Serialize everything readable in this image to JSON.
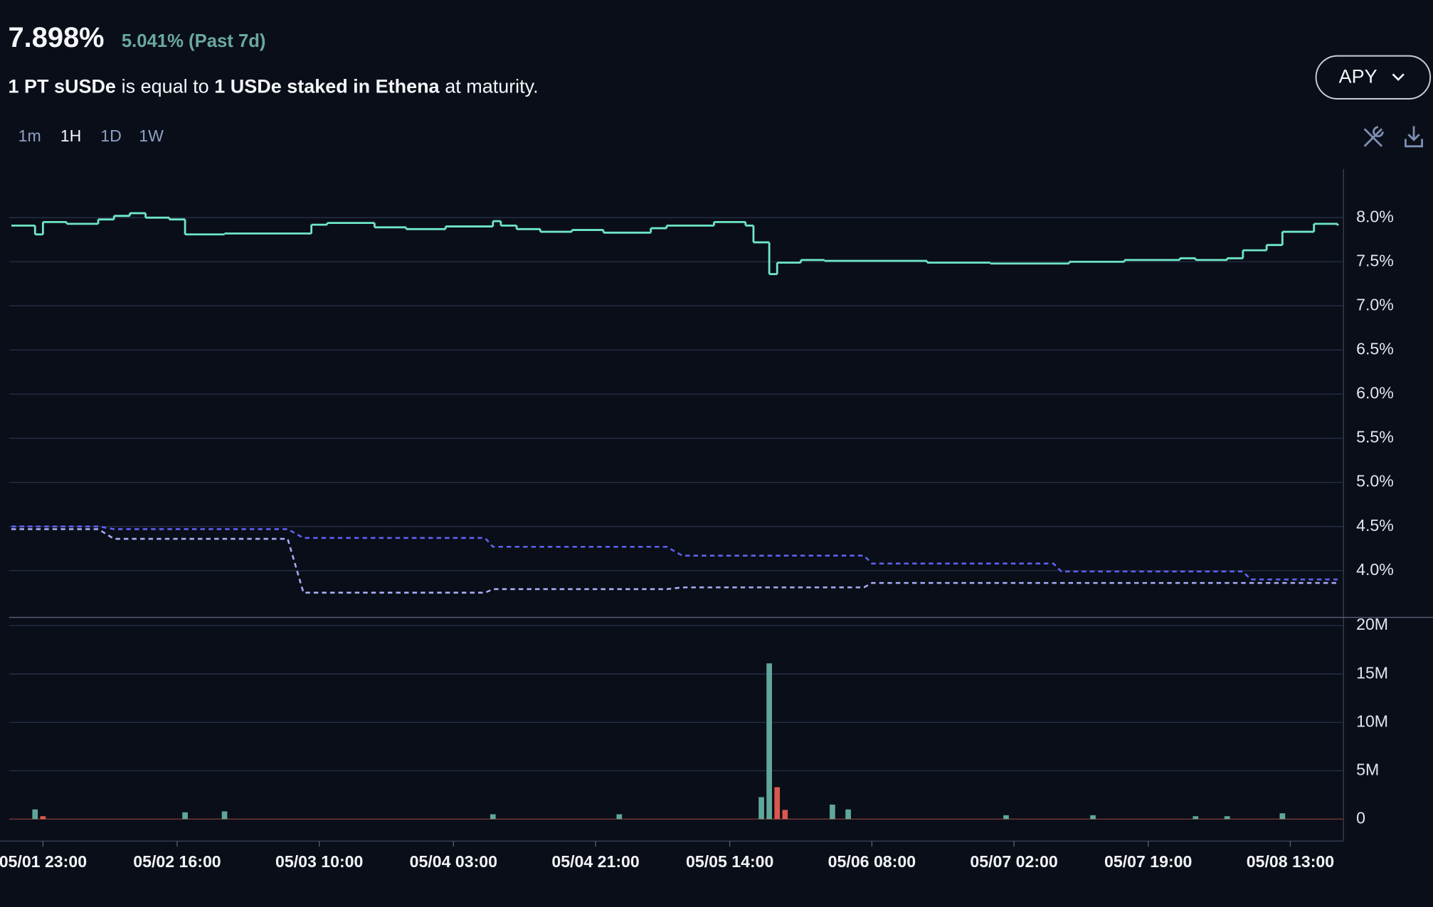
{
  "header": {
    "rate": "7.898%",
    "change": "5.041% (Past 7d)",
    "description": [
      "1 PT sUSDe",
      "is equal to",
      "1 USDe staked in Ethena",
      "at maturity."
    ]
  },
  "controls": {
    "timeframes": [
      "1m",
      "1H",
      "1D",
      "1W"
    ],
    "metric_button": "APY"
  },
  "chart_data": [
    {
      "type": "line",
      "xlim": [
        "05/01 18:43",
        "05/08 19:30"
      ],
      "ylim": [
        3.47,
        8.55
      ],
      "yticks": [
        {
          "value": 4,
          "label": "4.0%"
        },
        {
          "value": 4.5,
          "label": "4.5%"
        },
        {
          "value": 5,
          "label": "5.0%"
        },
        {
          "value": 5.5,
          "label": "5.5%"
        },
        {
          "value": 6,
          "label": "6.0%"
        },
        {
          "value": 6.5,
          "label": "6.5%"
        },
        {
          "value": 7,
          "label": "7.0%"
        },
        {
          "value": 7.5,
          "label": "7.5%"
        },
        {
          "value": 8,
          "label": "8.0%"
        }
      ],
      "grid": true,
      "series": [
        {
          "color": "#6ee7c6",
          "style": "step",
          "x": [
            "05/01 19:00",
            "05/01 22:00",
            "05/01 23:00",
            "05/02 02:00",
            "05/02 06:00",
            "05/02 08:00",
            "05/02 10:00",
            "05/02 12:00",
            "05/02 15:00",
            "05/02 17:00",
            "05/02 22:00",
            "05/03 09:00",
            "05/03 11:00",
            "05/03 17:00",
            "05/03 21:00",
            "05/04 02:00",
            "05/04 08:00",
            "05/04 09:00",
            "05/04 11:00",
            "05/04 14:00",
            "05/04 18:00",
            "05/04 22:00",
            "05/05 04:00",
            "05/05 06:00",
            "05/05 12:00",
            "05/05 16:00",
            "05/05 17:00",
            "05/05 19:00",
            "05/05 20:00",
            "05/05 23:00",
            "05/06 02:00",
            "05/06 15:00",
            "05/06 23:00",
            "05/07 09:00",
            "05/07 16:00",
            "05/07 23:00",
            "05/08 01:00",
            "05/08 05:00",
            "05/08 07:00",
            "05/08 10:00",
            "05/08 12:00",
            "05/08 16:00",
            "05/08 19:00"
          ],
          "values": [
            7.91,
            7.81,
            7.95,
            7.93,
            7.98,
            8.02,
            8.05,
            8.0,
            7.98,
            7.81,
            7.82,
            7.92,
            7.94,
            7.89,
            7.87,
            7.9,
            7.96,
            7.91,
            7.87,
            7.84,
            7.86,
            7.83,
            7.88,
            7.91,
            7.95,
            7.91,
            7.72,
            7.36,
            7.49,
            7.52,
            7.51,
            7.49,
            7.48,
            7.5,
            7.52,
            7.54,
            7.52,
            7.54,
            7.63,
            7.69,
            7.84,
            7.93,
            7.91
          ]
        },
        {
          "color": "#5d62f2",
          "style": "dashed",
          "x": [
            "05/01 19:00",
            "05/02 06:00",
            "05/02 08:00",
            "05/03 06:00",
            "05/03 08:00",
            "05/04 07:00",
            "05/04 08:00",
            "05/05 06:00",
            "05/05 08:00",
            "05/06 07:00",
            "05/06 08:00",
            "05/07 07:00",
            "05/07 08:00",
            "05/08 07:00",
            "05/08 08:00",
            "05/08 19:00"
          ],
          "values": [
            4.5,
            4.5,
            4.47,
            4.47,
            4.37,
            4.37,
            4.27,
            4.27,
            4.17,
            4.17,
            4.08,
            4.08,
            3.99,
            3.99,
            3.9,
            3.9
          ]
        },
        {
          "color": "#a9adf7",
          "style": "dashed",
          "x": [
            "05/01 19:00",
            "05/02 06:00",
            "05/02 08:00",
            "05/03 06:00",
            "05/03 08:00",
            "05/04 07:00",
            "05/04 08:00",
            "05/05 06:00",
            "05/05 08:00",
            "05/06 07:00",
            "05/06 08:00",
            "05/08 19:00"
          ],
          "values": [
            4.47,
            4.47,
            4.36,
            4.36,
            3.75,
            3.75,
            3.79,
            3.79,
            3.81,
            3.81,
            3.86,
            3.86
          ]
        }
      ]
    },
    {
      "type": "bar",
      "xlim": [
        "05/01 18:43",
        "05/08 19:30"
      ],
      "xticks": [
        "05/01 23:00",
        "05/02 16:00",
        "05/03 10:00",
        "05/04 03:00",
        "05/04 21:00",
        "05/05 14:00",
        "05/06 08:00",
        "05/07 02:00",
        "05/07 19:00",
        "05/08 13:00"
      ],
      "ylim": [
        -2270000,
        20850000
      ],
      "yticks": [
        0,
        {
          "value": 5000000,
          "label": "5M"
        },
        {
          "value": 10000000,
          "label": "10M"
        },
        {
          "value": 15000000,
          "label": "15M"
        },
        {
          "value": 20000000,
          "label": "20M"
        }
      ],
      "grid": true,
      "series": [
        {
          "color": "#5fa79a",
          "x": [
            "05/01 22:00",
            "05/02 17:00",
            "05/02 22:00",
            "05/04 08:00",
            "05/05 00:00",
            "05/05 18:00",
            "05/05 19:00",
            "05/06 03:00",
            "05/06 05:00",
            "05/07 01:00",
            "05/07 12:00",
            "05/08 01:00",
            "05/08 05:00",
            "05/08 12:00"
          ],
          "values": [
            1000000,
            700000,
            800000,
            500000,
            500000,
            2270000,
            16100000,
            1500000,
            1000000,
            400000,
            400000,
            300000,
            300000,
            600000
          ]
        },
        {
          "color": "#d9584f",
          "x": [
            "05/01 23:00",
            "05/05 20:00",
            "05/05 21:00"
          ],
          "values": [
            300000,
            3300000,
            950000
          ]
        }
      ]
    }
  ]
}
